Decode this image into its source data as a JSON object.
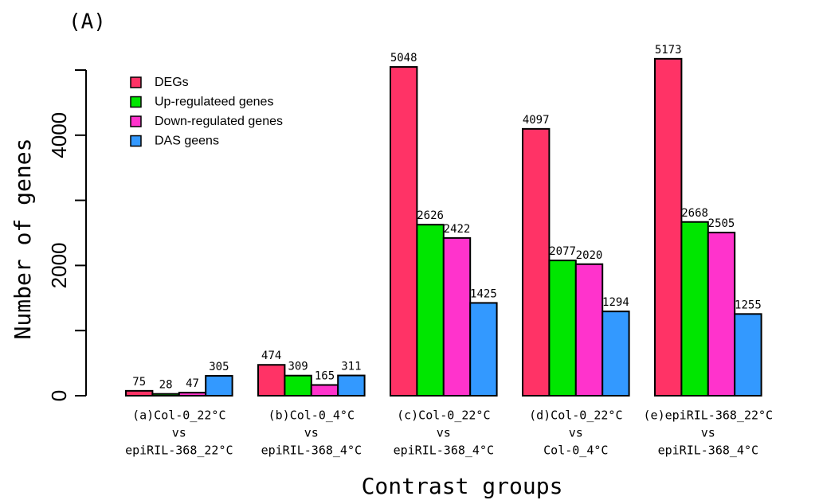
{
  "chart_data": {
    "type": "bar",
    "panel_label": "(A)",
    "x_label": "Contrast groups",
    "y_label": "Number of genes",
    "categories": [
      [
        "(a)Col-0_22°C",
        "vs",
        "epiRIL-368_22°C"
      ],
      [
        "(b)Col-0_4°C",
        "vs",
        "epiRIL-368_4°C"
      ],
      [
        "(c)Col-0_22°C",
        "vs",
        "epiRIL-368_4°C"
      ],
      [
        "(d)Col-0_22°C",
        "vs",
        "Col-0_4°C"
      ],
      [
        "(e)epiRIL-368_22°C",
        "vs",
        "epiRIL-368_4°C"
      ]
    ],
    "series": [
      {
        "name": "DEGs",
        "color": "#ff3366",
        "values": [
          75,
          474,
          5048,
          4097,
          5173
        ]
      },
      {
        "name": "Up-regulateed genes",
        "color": "#00e600",
        "values": [
          28,
          309,
          2626,
          2077,
          2668
        ]
      },
      {
        "name": "Down-regulated genes",
        "color": "#ff33cc",
        "values": [
          47,
          165,
          2422,
          2020,
          2505
        ]
      },
      {
        "name": "DAS geens",
        "color": "#3399ff",
        "values": [
          305,
          311,
          1425,
          1294,
          1255
        ]
      }
    ],
    "ylim": [
      0,
      5000
    ],
    "yticks": [
      0,
      2000,
      4000
    ],
    "minor_yticks": [
      1000,
      3000,
      5000
    ],
    "legend": "top-left"
  }
}
